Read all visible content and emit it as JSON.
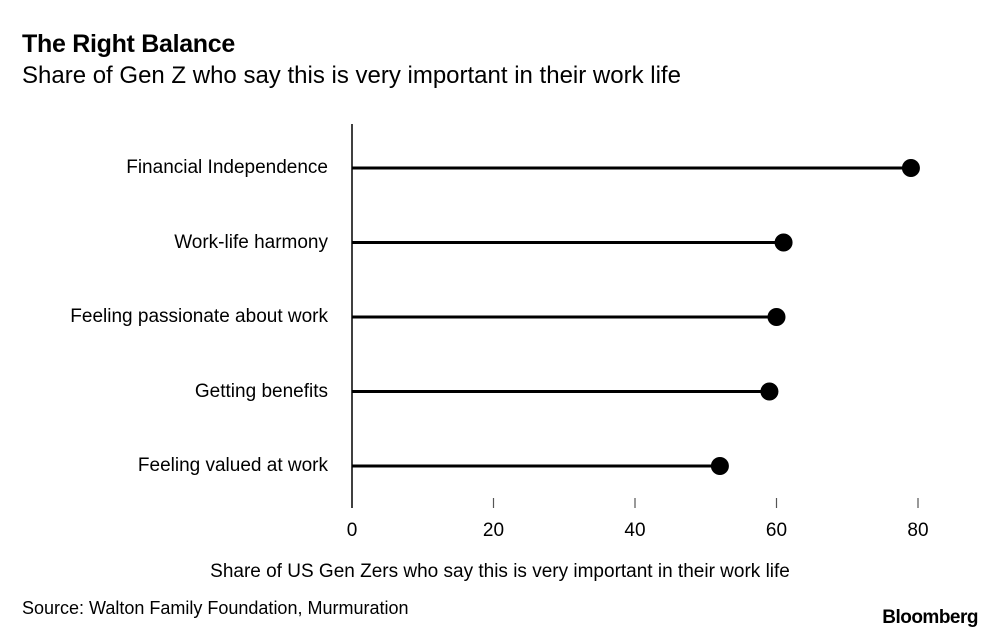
{
  "header": {
    "title": "The Right Balance",
    "subtitle": "Share of Gen Z who say this is very important in their work life"
  },
  "footer": {
    "source": "Source: Walton Family Foundation, Murmuration",
    "brand": "Bloomberg"
  },
  "chart_data": {
    "type": "lollipop",
    "title": "The Right Balance",
    "subtitle": "Share of Gen Z who say this is very important in their work life",
    "categories": [
      "Financial Independence",
      "Work-life harmony",
      "Feeling passionate about work",
      "Getting benefits",
      "Feeling valued at work"
    ],
    "values": [
      79,
      61,
      60,
      59,
      52
    ],
    "xlabel": "Share of US Gen Zers who say this is very important in their work life",
    "ylabel": "",
    "xlim": [
      0,
      80
    ],
    "xticks": [
      "0",
      "20",
      "40",
      "60",
      "80"
    ],
    "grid": false,
    "legend": null,
    "source": "Source: Walton Family Foundation, Murmuration",
    "colors": {
      "marker": "#000000",
      "line": "#000000",
      "axis": "#000000"
    }
  }
}
